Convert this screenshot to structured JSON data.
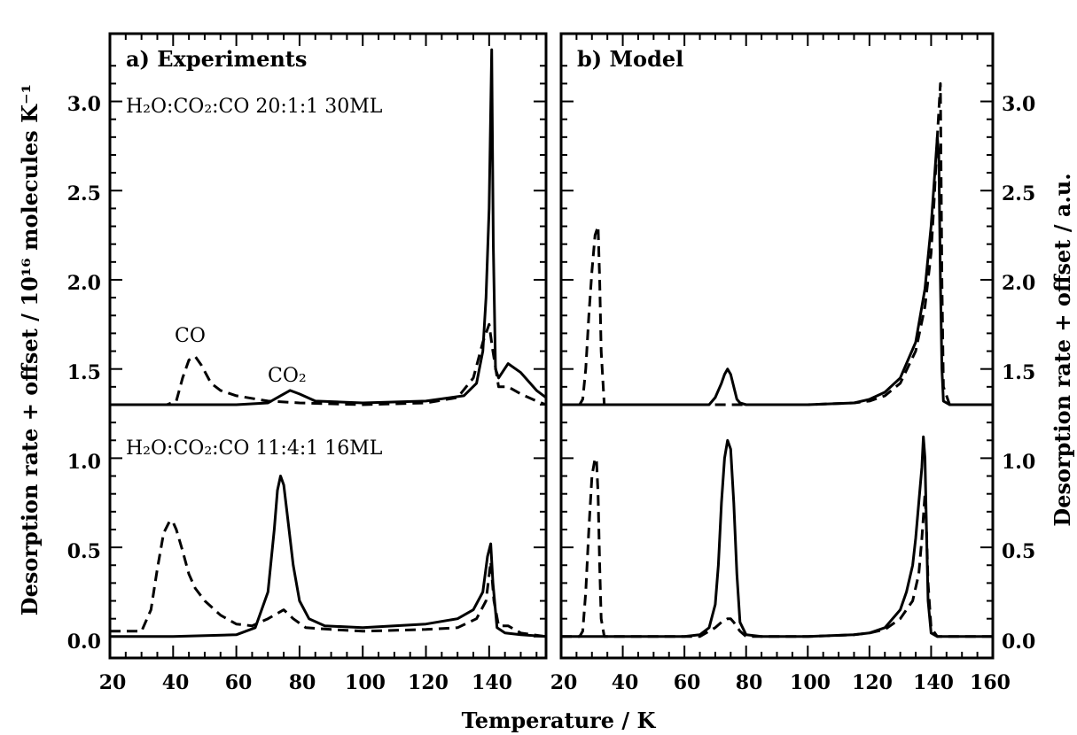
{
  "figure": {
    "xlabel": "Temperature / K",
    "ylabel_left": "Desorption rate + offset / 10¹⁶ molecules K⁻¹",
    "ylabel_right": "Desorption rate + offset / a.u.",
    "x_ticks_left": [
      "20",
      "40",
      "60",
      "80",
      "100",
      "120",
      "140"
    ],
    "x_ticks_right": [
      "20",
      "40",
      "60",
      "80",
      "100",
      "120",
      "140",
      "160"
    ],
    "y_ticks": [
      "0.0",
      "0.5",
      "1.0",
      "1.5",
      "2.0",
      "2.5",
      "3.0"
    ]
  },
  "panel_a": {
    "title": "a) Experiments",
    "label_top": "H₂O:CO₂:CO  20:1:1  30ML",
    "label_bottom": "H₂O:CO₂:CO  11:4:1  16ML",
    "annot_co": "CO",
    "annot_co2": "CO₂"
  },
  "panel_b": {
    "title": "b) Model"
  },
  "chart_data": [
    {
      "type": "line",
      "title": "a) Experiments",
      "xlabel": "Temperature / K",
      "ylabel": "Desorption rate + offset / 10¹⁶ molecules K⁻¹",
      "xlim": [
        20,
        158
      ],
      "ylim": [
        -0.12,
        3.38
      ],
      "series": [
        {
          "dash": "solid",
          "x": [
            20,
            40,
            60,
            70,
            74,
            77,
            80,
            85,
            100,
            120,
            132,
            136,
            138,
            139,
            140,
            140.8,
            141.3,
            142,
            143,
            146,
            150,
            155,
            158
          ],
          "y": [
            1.3,
            1.3,
            1.3,
            1.31,
            1.35,
            1.38,
            1.36,
            1.32,
            1.31,
            1.32,
            1.35,
            1.42,
            1.6,
            1.9,
            2.4,
            3.29,
            2.2,
            1.5,
            1.45,
            1.53,
            1.48,
            1.38,
            1.34
          ]
        },
        {
          "dash": "dashed",
          "x": [
            20,
            38,
            41,
            43,
            45,
            47,
            49,
            52,
            55,
            60,
            70,
            80,
            100,
            120,
            130,
            135,
            138,
            140,
            141,
            143,
            146,
            150,
            155,
            158
          ],
          "y": [
            1.3,
            1.3,
            1.32,
            1.45,
            1.55,
            1.57,
            1.52,
            1.42,
            1.38,
            1.35,
            1.32,
            1.31,
            1.3,
            1.31,
            1.34,
            1.45,
            1.65,
            1.75,
            1.62,
            1.4,
            1.4,
            1.36,
            1.32,
            1.3
          ]
        },
        {
          "dash": "solid",
          "x": [
            20,
            40,
            60,
            66,
            70,
            72,
            73,
            74,
            75,
            76,
            78,
            80,
            83,
            88,
            100,
            120,
            130,
            135,
            138,
            139.5,
            140.5,
            141.2,
            142.5,
            145,
            150,
            158
          ],
          "y": [
            0,
            0,
            0.01,
            0.05,
            0.25,
            0.6,
            0.82,
            0.9,
            0.85,
            0.7,
            0.4,
            0.2,
            0.1,
            0.06,
            0.05,
            0.07,
            0.1,
            0.15,
            0.25,
            0.45,
            0.52,
            0.3,
            0.05,
            0.02,
            0.01,
            0
          ]
        },
        {
          "dash": "dashed",
          "x": [
            20,
            25,
            30,
            33,
            35,
            37,
            39,
            40,
            41,
            43,
            45,
            47,
            50,
            55,
            60,
            65,
            70,
            75,
            78,
            82,
            90,
            100,
            120,
            130,
            136,
            139,
            140.5,
            141.5,
            143,
            146,
            150,
            158
          ],
          "y": [
            0.03,
            0.03,
            0.03,
            0.15,
            0.38,
            0.58,
            0.65,
            0.64,
            0.6,
            0.48,
            0.35,
            0.27,
            0.2,
            0.12,
            0.07,
            0.06,
            0.1,
            0.15,
            0.1,
            0.05,
            0.04,
            0.03,
            0.04,
            0.05,
            0.1,
            0.2,
            0.42,
            0.2,
            0.06,
            0.06,
            0.02,
            0
          ]
        }
      ]
    },
    {
      "type": "line",
      "title": "b) Model",
      "xlabel": "Temperature / K",
      "ylabel": "Desorption rate + offset / a.u.",
      "xlim": [
        20,
        160
      ],
      "ylim": [
        -0.12,
        3.38
      ],
      "series": [
        {
          "dash": "solid",
          "x": [
            20,
            60,
            68,
            70,
            72,
            73,
            74,
            75,
            76,
            77,
            78,
            80,
            85,
            100,
            115,
            120,
            125,
            130,
            135,
            138,
            140,
            141,
            142,
            142.5,
            143,
            143.5,
            144,
            146,
            160
          ],
          "y": [
            1.3,
            1.3,
            1.3,
            1.34,
            1.42,
            1.47,
            1.5,
            1.47,
            1.4,
            1.33,
            1.31,
            1.3,
            1.3,
            1.3,
            1.31,
            1.33,
            1.37,
            1.45,
            1.65,
            1.95,
            2.3,
            2.55,
            2.8,
            2.7,
            2.0,
            1.5,
            1.32,
            1.3,
            1.3
          ]
        },
        {
          "dash": "dashed",
          "x": [
            20,
            26,
            27,
            28,
            29,
            30,
            31,
            32,
            32.5,
            33,
            34,
            35,
            40,
            60,
            100,
            115,
            120,
            125,
            130,
            135,
            138,
            140,
            141,
            142,
            143,
            143.5,
            144,
            146,
            160
          ],
          "y": [
            1.3,
            1.3,
            1.33,
            1.5,
            1.8,
            2.05,
            2.25,
            2.3,
            2.0,
            1.6,
            1.3,
            1.3,
            1.3,
            1.3,
            1.3,
            1.31,
            1.32,
            1.35,
            1.42,
            1.6,
            1.85,
            2.15,
            2.45,
            2.8,
            3.1,
            2.0,
            1.4,
            1.3,
            1.3
          ]
        },
        {
          "dash": "solid",
          "x": [
            20,
            60,
            65,
            68,
            70,
            71,
            72,
            73,
            74,
            75,
            76,
            77,
            78,
            80,
            85,
            100,
            115,
            120,
            125,
            130,
            132,
            134,
            135,
            136,
            137,
            137.5,
            138,
            138.5,
            139,
            140,
            142,
            160
          ],
          "y": [
            0,
            0,
            0.01,
            0.05,
            0.18,
            0.4,
            0.75,
            1.0,
            1.1,
            1.05,
            0.75,
            0.35,
            0.08,
            0.01,
            0,
            0,
            0.01,
            0.02,
            0.05,
            0.15,
            0.25,
            0.4,
            0.55,
            0.75,
            0.95,
            1.12,
            1.0,
            0.6,
            0.2,
            0.02,
            0,
            0
          ]
        },
        {
          "dash": "dashed",
          "x": [
            20,
            26,
            27,
            28,
            29,
            30,
            31,
            31.5,
            32,
            32.5,
            33,
            34,
            35,
            40,
            65,
            70,
            72,
            74,
            75,
            76,
            78,
            80,
            100,
            115,
            120,
            125,
            130,
            134,
            136,
            137,
            138,
            138.5,
            139,
            140,
            142,
            160
          ],
          "y": [
            0,
            0,
            0.03,
            0.25,
            0.6,
            0.9,
            1.0,
            0.98,
            0.8,
            0.4,
            0.1,
            0,
            0,
            0,
            0,
            0.05,
            0.08,
            0.1,
            0.1,
            0.08,
            0.03,
            0,
            0,
            0.01,
            0.02,
            0.04,
            0.1,
            0.2,
            0.35,
            0.55,
            0.8,
            0.6,
            0.3,
            0.05,
            0,
            0
          ]
        }
      ]
    }
  ]
}
